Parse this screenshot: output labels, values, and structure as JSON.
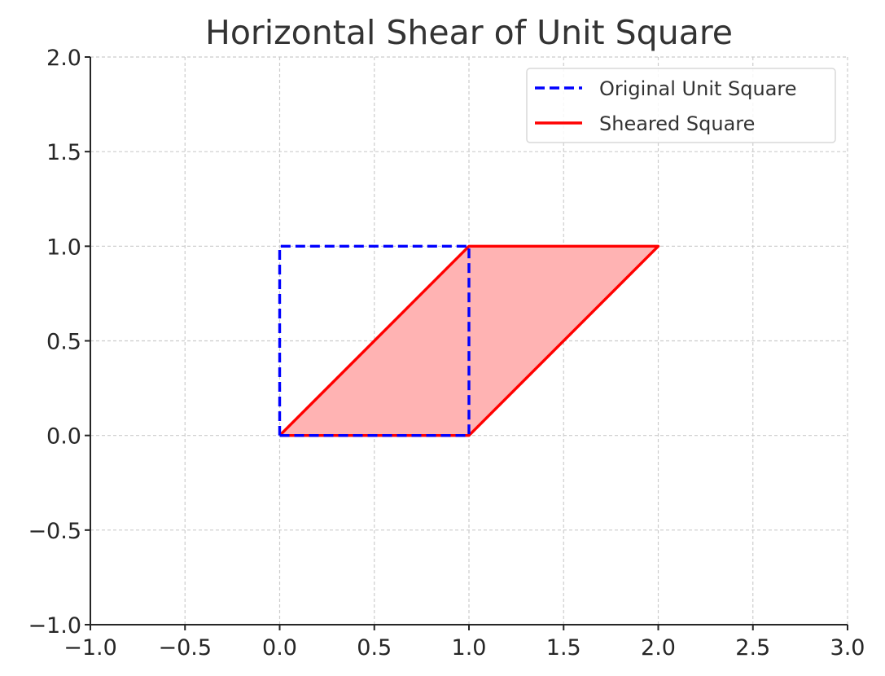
{
  "chart_data": {
    "type": "line",
    "title": "Horizontal Shear of Unit Square",
    "xlabel": "",
    "ylabel": "",
    "xlim": [
      -1.0,
      3.0
    ],
    "ylim": [
      -1.0,
      2.0
    ],
    "xticks": [
      -1.0,
      -0.5,
      0.0,
      0.5,
      1.0,
      1.5,
      2.0,
      2.5,
      3.0
    ],
    "yticks": [
      -1.0,
      -0.5,
      0.0,
      0.5,
      1.0,
      1.5,
      2.0
    ],
    "xtick_labels": [
      "−1.0",
      "−0.5",
      "0.0",
      "0.5",
      "1.0",
      "1.5",
      "2.0",
      "2.5",
      "3.0"
    ],
    "ytick_labels": [
      "−1.0",
      "−0.5",
      "0.0",
      "0.5",
      "1.0",
      "1.5",
      "2.0"
    ],
    "grid": true,
    "legend_position": "top-right",
    "series": [
      {
        "name": "Original Unit Square",
        "x": [
          0,
          1,
          1,
          0,
          0
        ],
        "y": [
          0,
          0,
          1,
          1,
          0
        ],
        "color": "#0000ff",
        "style": "dashed",
        "fill": false
      },
      {
        "name": "Sheared Square",
        "x": [
          0,
          1,
          2,
          1,
          0
        ],
        "y": [
          0,
          0,
          1,
          1,
          0
        ],
        "color": "#ff0000",
        "style": "solid",
        "fill": true,
        "fill_color": "#ffb3b3"
      }
    ]
  }
}
